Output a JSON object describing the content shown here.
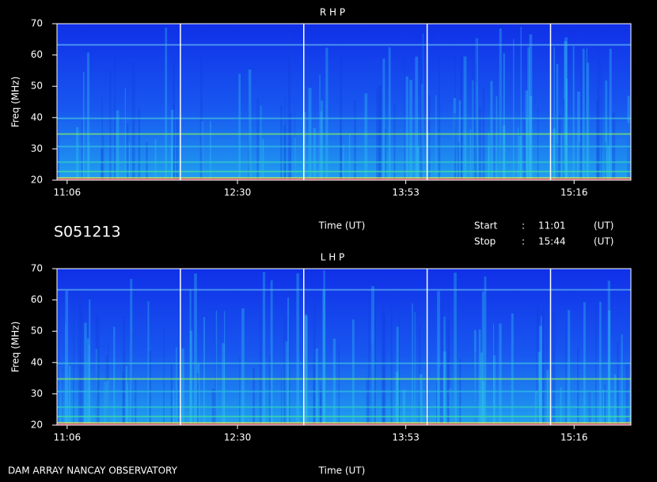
{
  "station": "S051213",
  "footer": "DAM ARRAY  NANCAY OBSERVATORY",
  "start_label": "Start",
  "stop_label": "Stop",
  "separator": ":",
  "start": "11:01",
  "stop": "15:44",
  "unit": "(UT)",
  "chart_data": [
    {
      "type": "spectrogram",
      "title": "R H P",
      "ylabel": "Freq (MHz)",
      "xlabel": "Time (UT)",
      "ylim": [
        20,
        70
      ],
      "yticks": [
        20,
        30,
        40,
        50,
        60,
        70
      ],
      "xticks": [
        "11:06",
        "12:30",
        "13:53",
        "15:16"
      ]
    },
    {
      "type": "spectrogram",
      "title": "L H P",
      "ylabel": "Freq (MHz)",
      "xlabel": "Time (UT)",
      "ylim": [
        20,
        70
      ],
      "yticks": [
        20,
        30,
        40,
        50,
        60,
        70
      ],
      "xticks": [
        "11:06",
        "12:30",
        "13:53",
        "15:16"
      ]
    }
  ]
}
